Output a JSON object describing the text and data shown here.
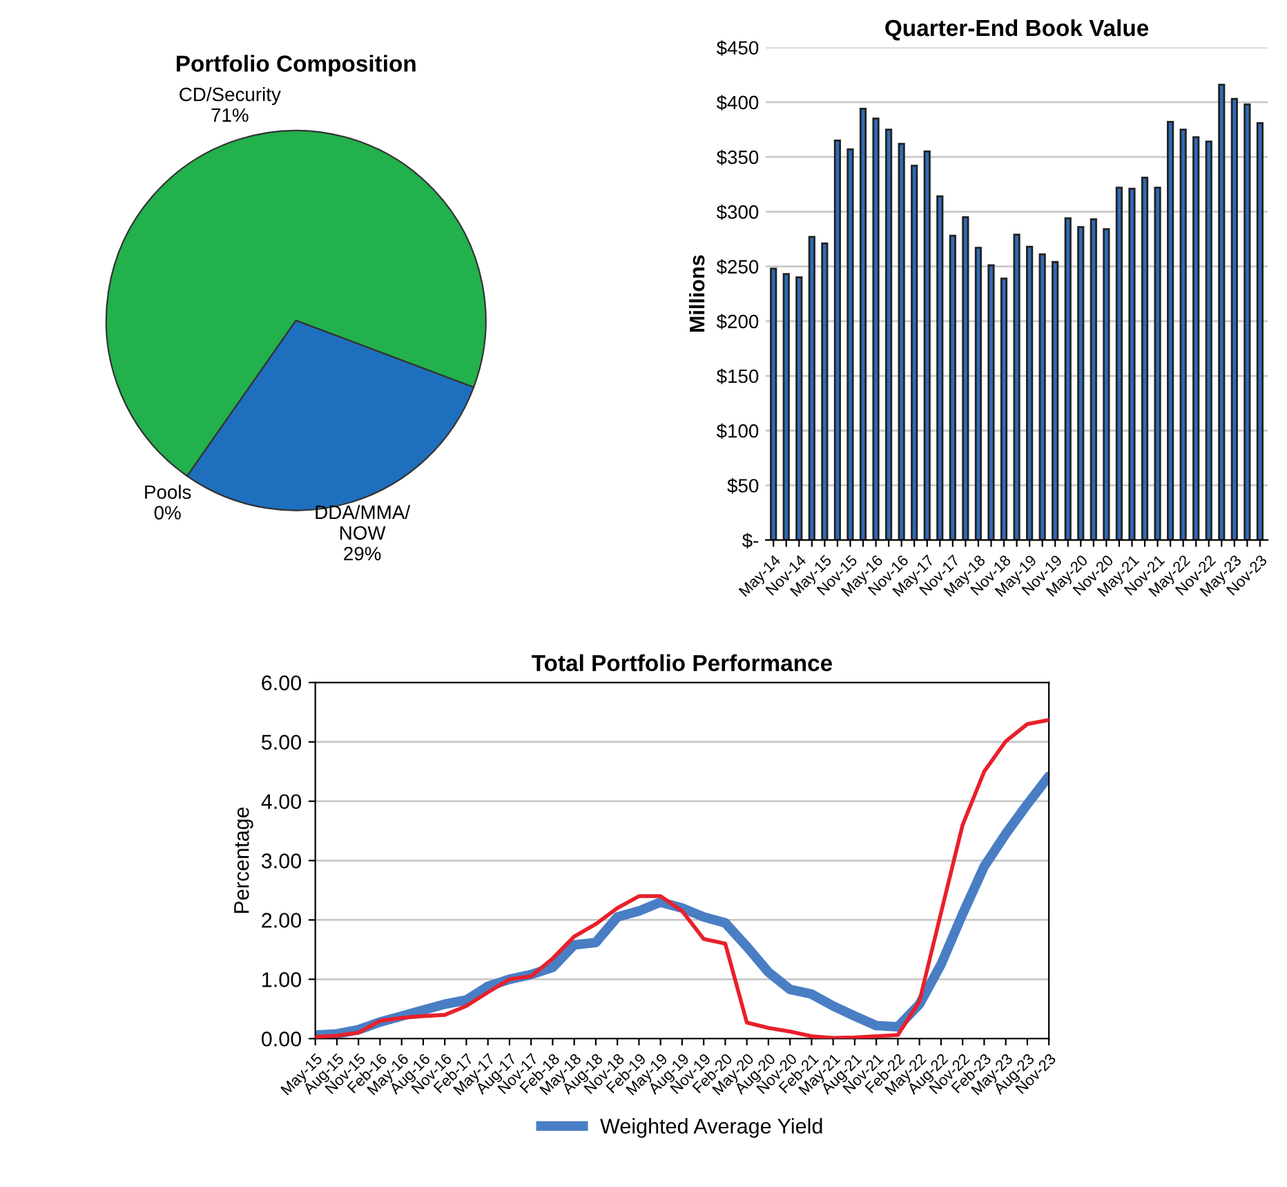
{
  "chart_data": [
    {
      "type": "pie",
      "title": "Portfolio Composition",
      "categories": [
        "CD/Security",
        "DDA/MMA/\nNOW",
        "Pools"
      ],
      "values": [
        71,
        29,
        0
      ],
      "colors": [
        "#22b14c",
        "#1f6fbf",
        "#e0201e"
      ],
      "value_labels": [
        "71%",
        "29%",
        "0%"
      ]
    },
    {
      "type": "bar",
      "title": "Quarter-End Book Value",
      "ylabel": "Millions",
      "categories": [
        "May-14",
        null,
        "Nov-14",
        null,
        "May-15",
        null,
        "Nov-15",
        null,
        "May-16",
        null,
        "Nov-16",
        null,
        "May-17",
        null,
        "Nov-17",
        null,
        "May-18",
        null,
        "Nov-18",
        null,
        "May-19",
        null,
        "Nov-19",
        null,
        "May-20",
        null,
        "Nov-20",
        null,
        "May-21",
        null,
        "Nov-21",
        null,
        "May-22",
        null,
        "Nov-22",
        null,
        "May-23",
        null,
        "Nov-23"
      ],
      "values": [
        248,
        243,
        240,
        277,
        271,
        365,
        357,
        394,
        385,
        375,
        362,
        342,
        355,
        314,
        278,
        295,
        267,
        251,
        239,
        279,
        268,
        261,
        254,
        294,
        286,
        293,
        284,
        322,
        321,
        331,
        322,
        382,
        375,
        368,
        364,
        416,
        403,
        398,
        381
      ],
      "color": "#2f6bb5",
      "ylim": [
        0,
        450
      ],
      "yticks": [
        {
          "value": 0,
          "label": "$-"
        },
        {
          "value": 50,
          "label": "$50"
        },
        {
          "value": 100,
          "label": "$100"
        },
        {
          "value": 150,
          "label": "$150"
        },
        {
          "value": 200,
          "label": "$200"
        },
        {
          "value": 250,
          "label": "$250"
        },
        {
          "value": 300,
          "label": "$300"
        },
        {
          "value": 350,
          "label": "$350"
        },
        {
          "value": 400,
          "label": "$400"
        },
        {
          "value": 450,
          "label": "$450"
        }
      ],
      "grid": "y"
    },
    {
      "type": "line",
      "title": "Total Portfolio Performance",
      "ylabel": "Percentage",
      "categories": [
        "May-15",
        "Aug-15",
        "Nov-15",
        "Feb-16",
        "May-16",
        "Aug-16",
        "Nov-16",
        "Feb-17",
        "May-17",
        "Aug-17",
        "Nov-17",
        "Feb-18",
        "May-18",
        "Aug-18",
        "Nov-18",
        "Feb-19",
        "May-19",
        "Aug-19",
        "Nov-19",
        "Feb-20",
        "May-20",
        "Aug-20",
        "Nov-20",
        "Feb-21",
        "May-21",
        "Aug-21",
        "Nov-21",
        "Feb-22",
        "May-22",
        "Aug-22",
        "Nov-22",
        "Feb-23",
        "May-23",
        "Aug-23",
        "Nov-23"
      ],
      "series": [
        {
          "name": "Weighted Average Yield",
          "color": "#4a7ec4",
          "values": [
            0.06,
            0.08,
            0.15,
            0.28,
            0.38,
            0.48,
            0.58,
            0.65,
            0.88,
            1.0,
            1.08,
            1.2,
            1.58,
            1.62,
            2.05,
            2.15,
            2.3,
            2.2,
            2.05,
            1.95,
            1.55,
            1.12,
            0.83,
            0.75,
            0.55,
            0.38,
            0.22,
            0.2,
            0.58,
            1.25,
            2.1,
            2.9,
            3.45,
            3.95,
            4.42
          ]
        },
        {
          "color": "#e8202a",
          "values": [
            0.03,
            0.05,
            0.1,
            0.3,
            0.35,
            0.38,
            0.4,
            0.55,
            0.78,
            1.0,
            1.05,
            1.35,
            1.72,
            1.93,
            2.2,
            2.4,
            2.4,
            2.15,
            1.68,
            1.6,
            0.27,
            0.18,
            0.12,
            0.04,
            0.01,
            0.02,
            0.04,
            0.06,
            0.63,
            2.12,
            3.6,
            4.5,
            5.01,
            5.3,
            5.37
          ]
        }
      ],
      "ylim": [
        0,
        6
      ],
      "yticks": [
        {
          "value": 0,
          "label": "0.00"
        },
        {
          "value": 1,
          "label": "1.00"
        },
        {
          "value": 2,
          "label": "2.00"
        },
        {
          "value": 3,
          "label": "3.00"
        },
        {
          "value": 4,
          "label": "4.00"
        },
        {
          "value": 5,
          "label": "5.00"
        },
        {
          "value": 6,
          "label": "6.00"
        }
      ],
      "grid": "y",
      "legend": "bottom"
    }
  ]
}
